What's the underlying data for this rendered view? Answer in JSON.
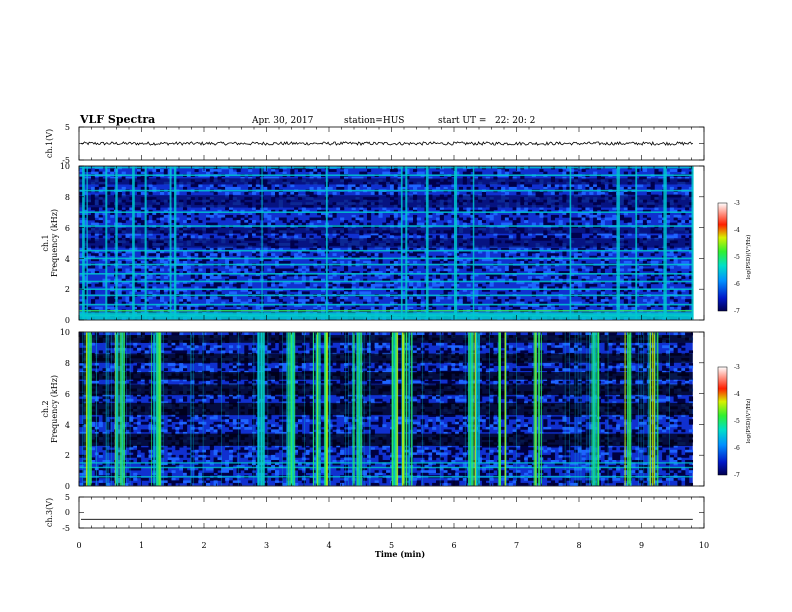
{
  "header": {
    "title": "VLF Spectra",
    "date": "Apr. 30, 2017",
    "station": "station=HUS",
    "start_ut": "start UT =   22: 20: 2"
  },
  "colors": {
    "deep": "#00004d",
    "mid": "#1030d0",
    "bright": "#1e64ff",
    "cyan": "#00c8d0",
    "green": "#2ef060",
    "yellow": "#c8f000",
    "red": "#ff2000"
  },
  "chart_data": [
    {
      "id": "ch1_waveform",
      "type": "line",
      "ylabel": "ch.1(V)",
      "ylim": [
        -5,
        5
      ],
      "yticks": [
        "5",
        "-5"
      ],
      "xlim": [
        0,
        10
      ],
      "signal_level": 0,
      "noise_amplitude": 0.5
    },
    {
      "id": "ch1_spectrogram",
      "type": "heatmap",
      "ylabel_line1": "ch.1",
      "ylabel_line2": "Frequency (kHz)",
      "ylim": [
        0,
        10
      ],
      "yticks": [
        "0",
        "2",
        "4",
        "6",
        "8",
        "10"
      ],
      "xlim": [
        0,
        10
      ],
      "data_extent_min": 9.82,
      "colorbar": {
        "range": [
          -7,
          -3
        ],
        "ticks": [
          "-3",
          "-4",
          "-5",
          "-6",
          "-7"
        ],
        "label": "log(PSD)(V²/Hz)"
      },
      "horizontal_bands_khz": [
        0.3,
        0.6,
        1.0,
        1.6,
        2.0,
        2.5,
        3.0,
        3.6,
        4.0,
        4.5,
        6.1,
        7.0,
        8.4,
        9.4,
        9.9
      ],
      "vertical_bursts_min": [
        0.05,
        0.12,
        0.42,
        0.58,
        0.85,
        1.05,
        1.45,
        1.52,
        2.92,
        3.95,
        5.15,
        5.22,
        5.55,
        6.0,
        6.3,
        7.85,
        8.6,
        8.9,
        9.35,
        9.8
      ]
    },
    {
      "id": "ch2_spectrogram",
      "type": "heatmap",
      "ylabel_line1": "ch.2",
      "ylabel_line2": "Frequency (kHz)",
      "ylim": [
        0,
        10
      ],
      "yticks": [
        "0",
        "2",
        "4",
        "6",
        "8",
        "10"
      ],
      "xlim": [
        0,
        10
      ],
      "data_extent_min": 9.82,
      "colorbar": {
        "range": [
          -7,
          -3
        ],
        "ticks": [
          "-3",
          "-4",
          "-5",
          "-6",
          "-7"
        ],
        "label": "log(PSD)(V²/Hz)"
      },
      "dark_bands_khz": [
        [
          2.6,
          3.4
        ],
        [
          4.6,
          5.4
        ],
        [
          5.9,
          6.6
        ],
        [
          6.9,
          7.4
        ],
        [
          8.0,
          8.6
        ],
        [
          9.3,
          9.8
        ]
      ],
      "bright_bands_khz": [
        0.6,
        1.2,
        1.5
      ],
      "burst_intervals_min": [
        [
          0.08,
          0.2
        ],
        [
          0.55,
          0.72
        ],
        [
          1.1,
          1.3
        ],
        [
          2.82,
          2.98
        ],
        [
          3.3,
          3.5
        ],
        [
          3.7,
          4.0
        ],
        [
          4.35,
          4.5
        ],
        [
          5.0,
          5.35
        ],
        [
          6.2,
          6.42
        ],
        [
          6.7,
          6.85
        ],
        [
          7.25,
          7.4
        ],
        [
          8.1,
          8.3
        ],
        [
          8.72,
          8.82
        ],
        [
          9.1,
          9.25
        ]
      ]
    },
    {
      "id": "ch3_waveform",
      "type": "line",
      "ylabel": "ch.3(V)",
      "ylim": [
        -5,
        5
      ],
      "yticks": [
        "5",
        "0",
        "-5"
      ],
      "xlim": [
        0,
        10
      ],
      "signal_level": -2.2,
      "noise_amplitude": 0
    }
  ],
  "x_axis": {
    "label": "Time (min)",
    "ticks": [
      "0",
      "1",
      "2",
      "3",
      "4",
      "5",
      "6",
      "7",
      "8",
      "9",
      "10"
    ]
  }
}
